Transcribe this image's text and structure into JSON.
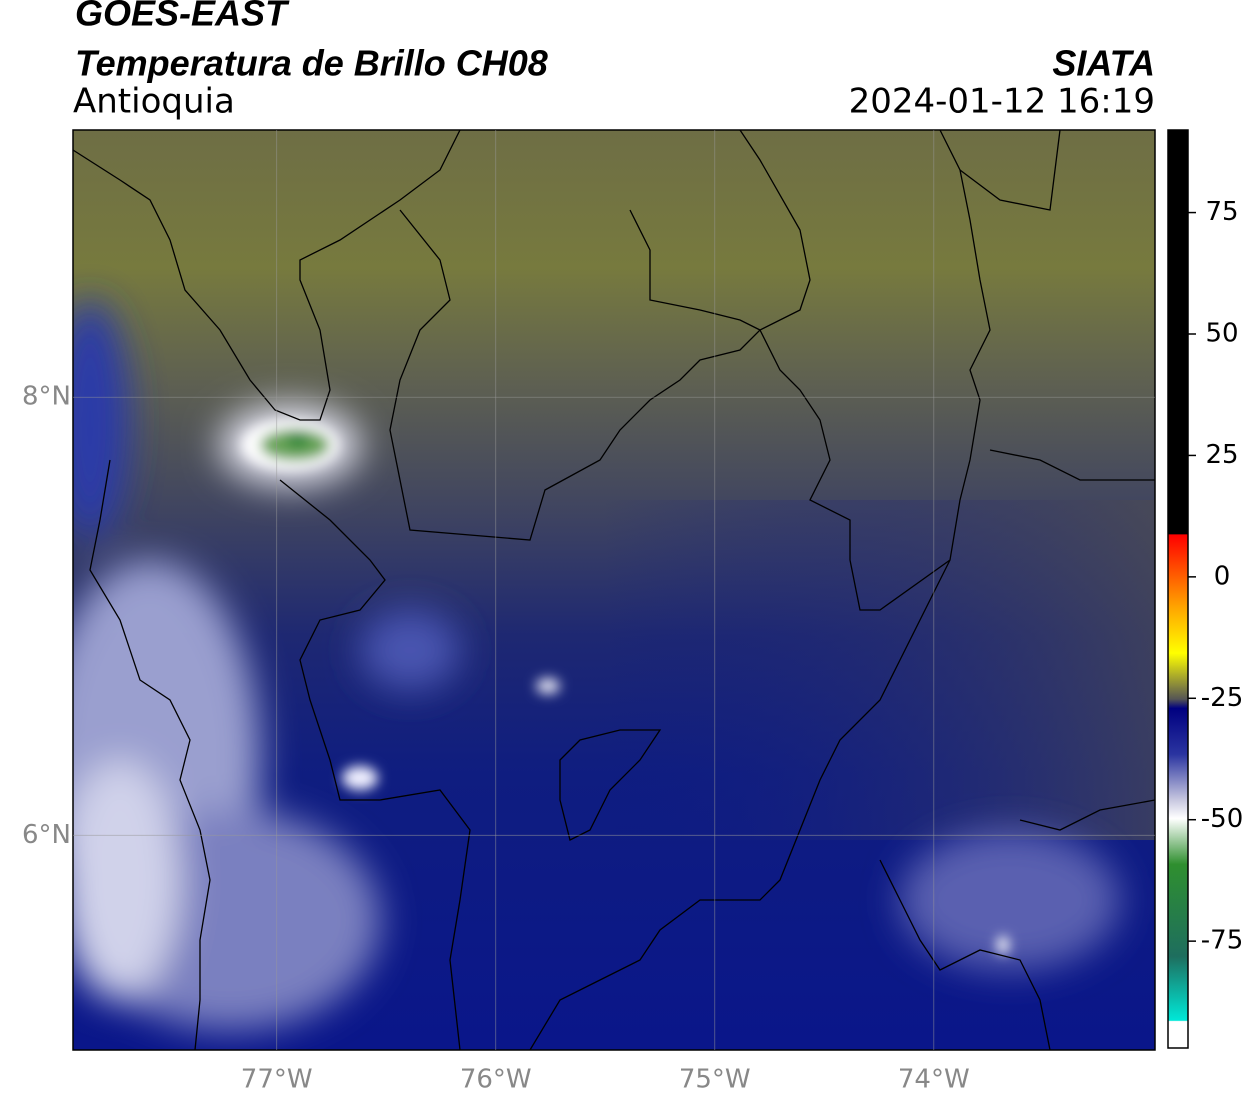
{
  "header": {
    "title": "GOES-EAST",
    "subtitle": "Temperatura de Brillo CH08",
    "region": "Antioquia",
    "source": "SIATA",
    "datetime": "2024-01-12 16:19"
  },
  "map": {
    "lon_range": [
      -77.93,
      -72.99
    ],
    "lat_range": [
      5.02,
      9.22
    ],
    "lon_ticks": [
      {
        "value": -77,
        "label": "77°W"
      },
      {
        "value": -76,
        "label": "76°W"
      },
      {
        "value": -75,
        "label": "75°W"
      },
      {
        "value": -74,
        "label": "74°W"
      }
    ],
    "lat_ticks": [
      {
        "value": 8,
        "label": "8°N"
      },
      {
        "value": 6,
        "label": "6°N"
      }
    ]
  },
  "colorbar": {
    "lim": [
      -97,
      92
    ],
    "ticks": [
      75,
      50,
      25,
      0,
      -25,
      -50,
      -75
    ]
  }
}
